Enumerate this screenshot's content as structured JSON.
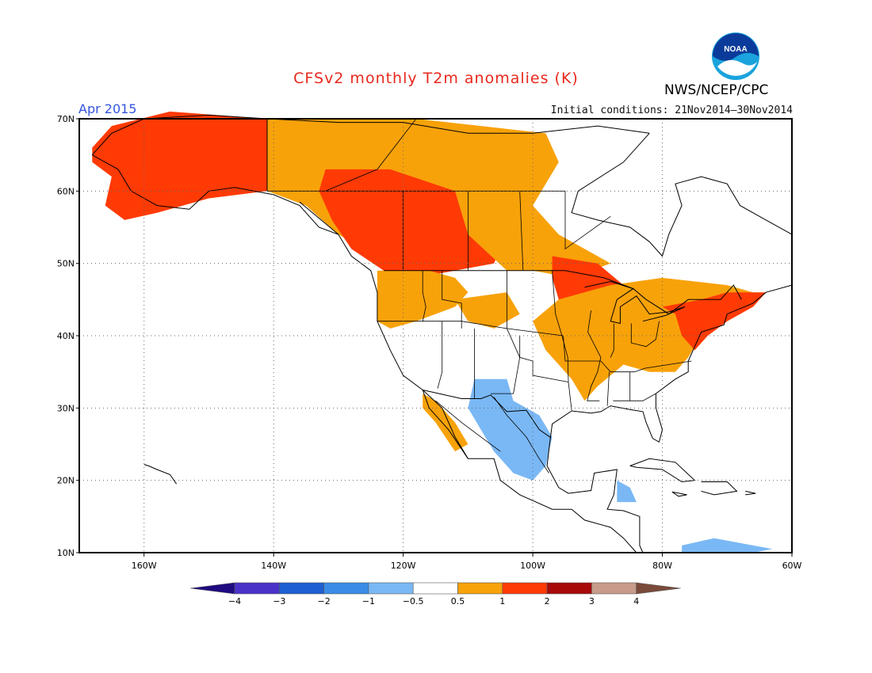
{
  "title": "CFSv2 monthly T2m anomalies (K)",
  "organization": "NWS/NCEP/CPC",
  "logo_text": "NOAA",
  "valid_month": "Apr 2015",
  "initial_conditions": "Initial conditions: 21Nov2014–30Nov2014",
  "map": {
    "lon_range": [
      -170,
      -60
    ],
    "lat_range": [
      10,
      70
    ],
    "grid": "dotted",
    "lon_ticks": [
      "160W",
      "140W",
      "120W",
      "100W",
      "80W",
      "60W"
    ],
    "lat_ticks": [
      "70N",
      "60N",
      "50N",
      "40N",
      "30N",
      "20N",
      "10N"
    ]
  },
  "colorbar": {
    "labels": [
      "−4",
      "−3",
      "−2",
      "−1",
      "−0.5",
      "0.5",
      "1",
      "2",
      "3",
      "4"
    ],
    "colors": [
      "#1f0a80",
      "#4a32c8",
      "#1e5fd2",
      "#3a8ce6",
      "#7ab8f5",
      "#ffffff",
      "#f8a20a",
      "#ff3a05",
      "#a80a0a",
      "#c89b8a",
      "#7a4a3a"
    ]
  },
  "anomaly_colors": {
    "cool_light": "#7ab8f5",
    "cool_mid": "#3a8ce6",
    "cool_deep": "#4a32c8",
    "warm_light": "#f8a20a",
    "warm_mid": "#ff3a05",
    "warm_deep": "#a80a0a"
  }
}
